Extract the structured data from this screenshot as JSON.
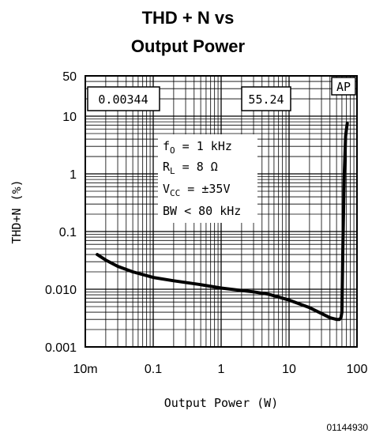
{
  "chart_data": {
    "type": "line",
    "title_lines": [
      "THD + N vs",
      "Output Power"
    ],
    "xlabel": "Output Power (W)",
    "ylabel": "THD+N (%)",
    "x_scale": "log",
    "y_scale": "log",
    "xlim": [
      0.01,
      100
    ],
    "ylim": [
      0.001,
      50
    ],
    "x_ticks": [
      {
        "value": 0.01,
        "label": "10m"
      },
      {
        "value": 0.1,
        "label": "0.1"
      },
      {
        "value": 1,
        "label": "1"
      },
      {
        "value": 10,
        "label": "10"
      },
      {
        "value": 100,
        "label": "100"
      }
    ],
    "y_ticks": [
      {
        "value": 50,
        "label": "50"
      },
      {
        "value": 10,
        "label": "10"
      },
      {
        "value": 1,
        "label": "1"
      },
      {
        "value": 0.1,
        "label": "0.1"
      },
      {
        "value": 0.01,
        "label": "0.010"
      },
      {
        "value": 0.001,
        "label": "0.001"
      }
    ],
    "grid": true,
    "series": [
      {
        "x": [
          0.015,
          0.02,
          0.03,
          0.05,
          0.1,
          0.2,
          0.5,
          1,
          2,
          3,
          5,
          10,
          20,
          30,
          40,
          50,
          55,
          58,
          60,
          62,
          65,
          68,
          70,
          72
        ],
        "y": [
          0.04,
          0.032,
          0.025,
          0.02,
          0.016,
          0.014,
          0.012,
          0.0105,
          0.0095,
          0.009,
          0.0082,
          0.0065,
          0.0048,
          0.0038,
          0.0032,
          0.003,
          0.003,
          0.0032,
          0.004,
          0.05,
          1.0,
          4.5,
          6.0,
          7.5
        ]
      }
    ],
    "annotations": {
      "box_left": "0.00344",
      "box_mid": "55.24",
      "box_right": "AP",
      "conditions": [
        "f",
        "O",
        " = 1 kHz",
        "R",
        "L",
        " = 8 Ω",
        "V",
        "CC",
        " = ±35V",
        "BW < 80 kHz"
      ]
    },
    "figure_id": "01144930"
  }
}
